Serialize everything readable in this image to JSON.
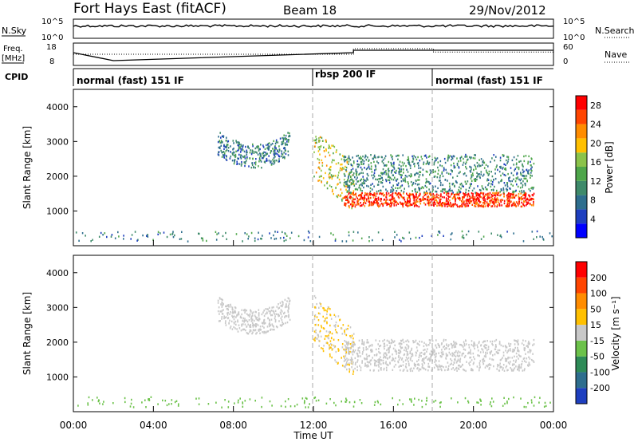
{
  "header": {
    "title": "Fort Hays East (fitACF)",
    "beam": "Beam 18",
    "date": "29/Nov/2012"
  },
  "summary_panel": {
    "nsky_label": "N.Sky",
    "nsky_ticks": [
      "10^5",
      "10^0"
    ],
    "nsearch_label": "N.Search",
    "nsearch_ticks": [
      "10^5",
      "10^0"
    ],
    "freq_label": "Freq.",
    "freq_unit": "[MHz]",
    "freq_ticks": [
      "18",
      "8"
    ],
    "nave_label": "Nave",
    "nave_ticks": [
      "60",
      "0"
    ],
    "cpid_label": "CPID",
    "modes": [
      {
        "label": "normal (fast) 151 IF",
        "start": 0
      },
      {
        "label": "rbsp 200 IF",
        "start": 12
      },
      {
        "label": "normal (fast) 151 IF",
        "start": 18
      }
    ],
    "freq_steps": [
      [
        0,
        14
      ],
      [
        2,
        9
      ],
      [
        14,
        14
      ],
      [
        14,
        15.5
      ],
      [
        24,
        15.5
      ]
    ],
    "nave_steps": [
      [
        0,
        10
      ],
      [
        2,
        10
      ],
      [
        14,
        10
      ],
      [
        14,
        15
      ],
      [
        18,
        15
      ],
      [
        18,
        12
      ],
      [
        24,
        12
      ]
    ]
  },
  "chart_data": [
    {
      "type": "heatmap",
      "name": "power",
      "ylabel": "Slant Range [km]",
      "xlabel": "",
      "ylim": [
        0,
        4500
      ],
      "yticks": [
        "1000",
        "2000",
        "3000",
        "4000"
      ],
      "colorbar": {
        "label": "Power [dB]",
        "ticks": [
          "4",
          "8",
          "12",
          "16",
          "20",
          "24",
          "28"
        ],
        "range": [
          0,
          30
        ],
        "colors": [
          "#0000ff",
          "#1e3fbf",
          "#2e6e8e",
          "#3e8a6a",
          "#4ea64a",
          "#8bc34a",
          "#ffc000",
          "#ff8c00",
          "#ff4500",
          "#ff0000"
        ]
      },
      "scatter_regions": [
        {
          "x": [
            7.2,
            10.8
          ],
          "y_center": 2600,
          "y_half": 350,
          "value": 9
        },
        {
          "x": [
            12.0,
            14.0
          ],
          "y_center": 1700,
          "y_half": 700,
          "value": 18
        },
        {
          "x": [
            13.5,
            23.0
          ],
          "y_center": 1350,
          "y_half": 200,
          "value": 27
        },
        {
          "x": [
            13.5,
            23.0
          ],
          "y_center": 2100,
          "y_half": 550,
          "value": 10
        }
      ]
    },
    {
      "type": "heatmap",
      "name": "velocity",
      "ylabel": "Slant Range [km]",
      "xlabel": "Time UT",
      "ylim": [
        0,
        4500
      ],
      "yticks": [
        "1000",
        "2000",
        "3000",
        "4000"
      ],
      "xticks": [
        "00:00",
        "04:00",
        "08:00",
        "12:00",
        "16:00",
        "20:00",
        "00:00"
      ],
      "colorbar": {
        "label": "Velocity [m s⁻¹]",
        "ticks": [
          "200",
          "100",
          "50",
          "15",
          "-15",
          "-50",
          "-100",
          "-200"
        ],
        "range": [
          -250,
          250
        ],
        "colors": [
          "#1e3fbf",
          "#2e6e8e",
          "#2e8b57",
          "#6cc24a",
          "#c8c8c8",
          "#ffc000",
          "#ff8c00",
          "#ff4500",
          "#ff0000"
        ]
      },
      "scatter_regions": [
        {
          "x": [
            7.2,
            10.8
          ],
          "y_center": 2600,
          "y_half": 350,
          "value": 0
        },
        {
          "x": [
            12.0,
            14.0
          ],
          "y_center": 1700,
          "y_half": 700,
          "value": 30
        },
        {
          "x": [
            13.5,
            23.0
          ],
          "y_center": 1650,
          "y_half": 450,
          "value": 0
        }
      ]
    }
  ]
}
